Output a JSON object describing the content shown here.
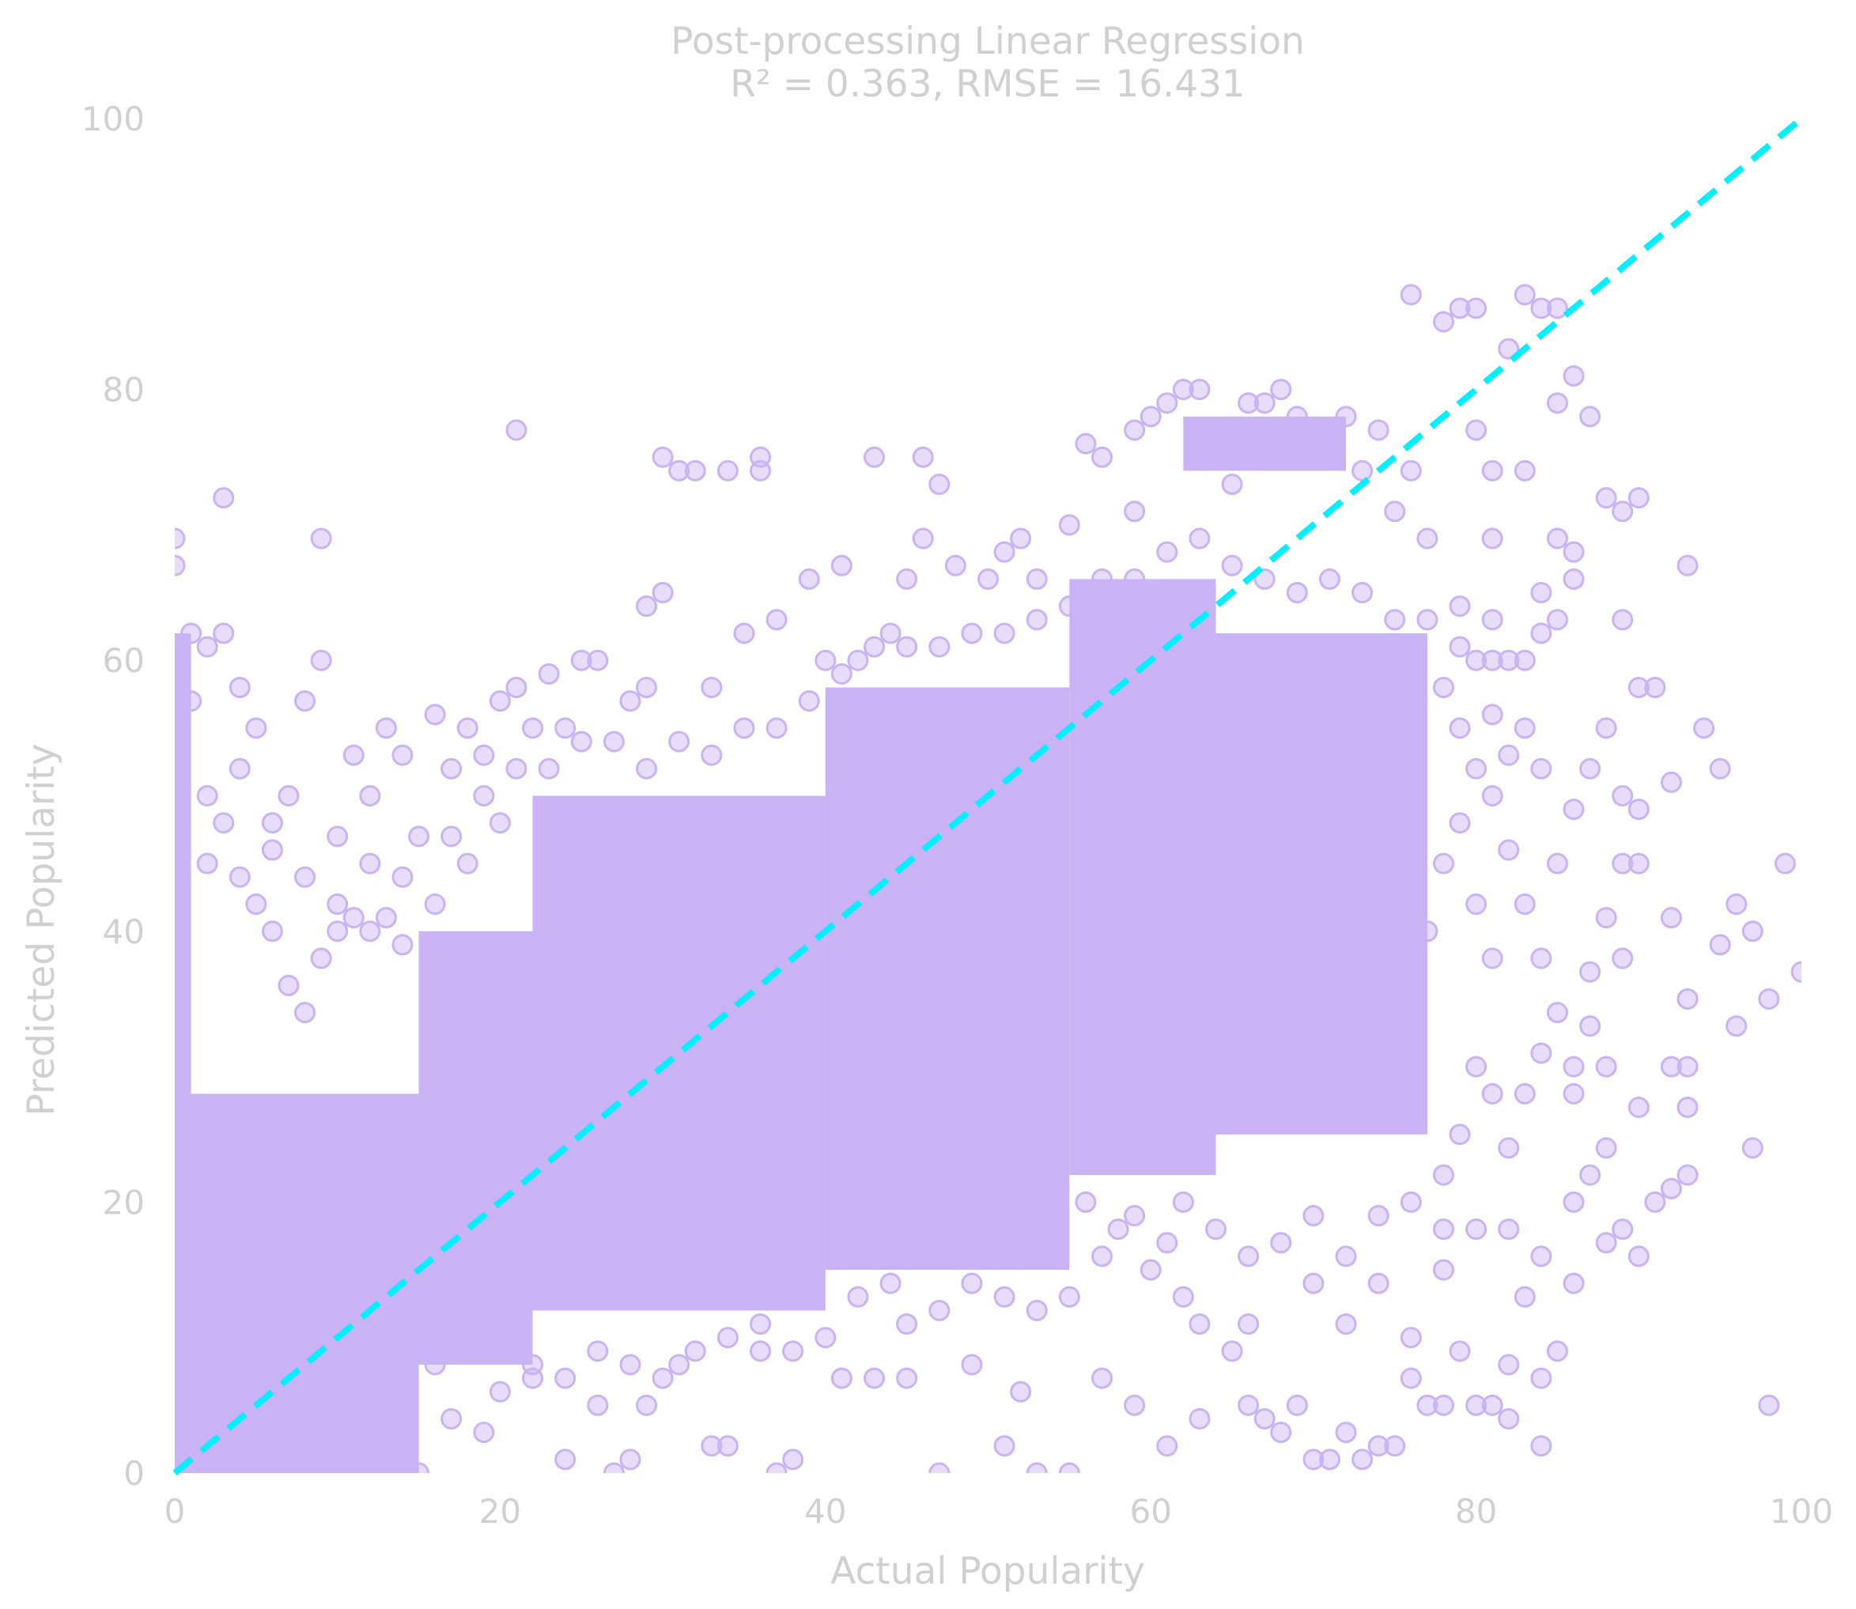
{
  "chart_data": {
    "type": "scatter",
    "title": "Post-processing Linear Regression",
    "subtitle": "R² = 0.363, RMSE = 16.431",
    "xlabel": "Actual Popularity",
    "ylabel": "Predicted Popularity",
    "xlim": [
      0,
      100
    ],
    "ylim": [
      0,
      100
    ],
    "xticks": [
      "0",
      "20",
      "40",
      "60",
      "80",
      "100"
    ],
    "yticks": [
      "0",
      "20",
      "40",
      "60",
      "80",
      "100"
    ],
    "grid": false,
    "point_color": "#c9b3f4",
    "reference_line": {
      "style": "dashed",
      "color": "#00f0ff",
      "from": [
        0,
        0
      ],
      "to": [
        100,
        100
      ]
    },
    "dense_regions": [
      {
        "x": [
          0,
          1
        ],
        "y": [
          0,
          62
        ]
      },
      {
        "x": [
          1,
          15
        ],
        "y": [
          0,
          28
        ]
      },
      {
        "x": [
          15,
          22
        ],
        "y": [
          8,
          40
        ]
      },
      {
        "x": [
          22,
          40
        ],
        "y": [
          12,
          50
        ]
      },
      {
        "x": [
          40,
          55
        ],
        "y": [
          15,
          58
        ]
      },
      {
        "x": [
          55,
          64
        ],
        "y": [
          22,
          66
        ]
      },
      {
        "x": [
          64,
          77
        ],
        "y": [
          25,
          62
        ]
      },
      {
        "x": [
          62,
          72
        ],
        "y": [
          74,
          78
        ]
      }
    ],
    "points": [
      [
        0,
        69
      ],
      [
        0,
        67
      ],
      [
        0,
        60
      ],
      [
        0,
        55
      ],
      [
        1,
        62
      ],
      [
        1,
        57
      ],
      [
        2,
        61
      ],
      [
        3,
        72
      ],
      [
        3,
        62
      ],
      [
        4,
        58
      ],
      [
        5,
        55
      ],
      [
        6,
        48
      ],
      [
        7,
        50
      ],
      [
        8,
        57
      ],
      [
        9,
        69
      ],
      [
        9,
        60
      ],
      [
        10,
        42
      ],
      [
        11,
        53
      ],
      [
        12,
        50
      ],
      [
        13,
        55
      ],
      [
        14,
        53
      ],
      [
        15,
        47
      ],
      [
        16,
        56
      ],
      [
        17,
        52
      ],
      [
        18,
        55
      ],
      [
        19,
        53
      ],
      [
        20,
        57
      ],
      [
        21,
        77
      ],
      [
        21,
        58
      ],
      [
        22,
        55
      ],
      [
        23,
        59
      ],
      [
        24,
        55
      ],
      [
        25,
        60
      ],
      [
        26,
        60
      ],
      [
        28,
        57
      ],
      [
        29,
        64
      ],
      [
        29,
        58
      ],
      [
        30,
        75
      ],
      [
        30,
        65
      ],
      [
        31,
        74
      ],
      [
        32,
        74
      ],
      [
        33,
        58
      ],
      [
        34,
        74
      ],
      [
        35,
        62
      ],
      [
        36,
        74
      ],
      [
        36,
        75
      ],
      [
        37,
        63
      ],
      [
        39,
        66
      ],
      [
        40,
        60
      ],
      [
        41,
        67
      ],
      [
        42,
        60
      ],
      [
        43,
        75
      ],
      [
        44,
        62
      ],
      [
        45,
        66
      ],
      [
        46,
        75
      ],
      [
        46,
        69
      ],
      [
        47,
        73
      ],
      [
        48,
        67
      ],
      [
        50,
        66
      ],
      [
        51,
        68
      ],
      [
        52,
        69
      ],
      [
        53,
        66
      ],
      [
        55,
        70
      ],
      [
        56,
        76
      ],
      [
        57,
        75
      ],
      [
        59,
        77
      ],
      [
        59,
        71
      ],
      [
        60,
        78
      ],
      [
        61,
        79
      ],
      [
        62,
        80
      ],
      [
        63,
        80
      ],
      [
        64,
        75
      ],
      [
        65,
        73
      ],
      [
        66,
        79
      ],
      [
        67,
        79
      ],
      [
        68,
        80
      ],
      [
        69,
        78
      ],
      [
        70,
        75
      ],
      [
        71,
        77
      ],
      [
        72,
        78
      ],
      [
        73,
        74
      ],
      [
        74,
        77
      ],
      [
        75,
        71
      ],
      [
        76,
        87
      ],
      [
        76,
        74
      ],
      [
        77,
        69
      ],
      [
        78,
        85
      ],
      [
        79,
        86
      ],
      [
        79,
        64
      ],
      [
        80,
        86
      ],
      [
        80,
        77
      ],
      [
        81,
        74
      ],
      [
        81,
        69
      ],
      [
        82,
        83
      ],
      [
        83,
        87
      ],
      [
        83,
        74
      ],
      [
        84,
        86
      ],
      [
        85,
        86
      ],
      [
        85,
        79
      ],
      [
        86,
        81
      ],
      [
        87,
        78
      ],
      [
        88,
        72
      ],
      [
        89,
        71
      ],
      [
        89,
        63
      ],
      [
        90,
        72
      ],
      [
        90,
        58
      ],
      [
        91,
        58
      ],
      [
        92,
        51
      ],
      [
        93,
        67
      ],
      [
        94,
        55
      ],
      [
        95,
        52
      ],
      [
        96,
        42
      ],
      [
        97,
        40
      ],
      [
        99,
        45
      ],
      [
        100,
        37
      ],
      [
        98,
        35
      ],
      [
        96,
        33
      ],
      [
        97,
        24
      ],
      [
        98,
        5
      ],
      [
        95,
        39
      ],
      [
        93,
        35
      ],
      [
        93,
        30
      ],
      [
        92,
        30
      ],
      [
        92,
        41
      ],
      [
        91,
        20
      ],
      [
        92,
        21
      ],
      [
        93,
        22
      ],
      [
        93,
        27
      ],
      [
        90,
        27
      ],
      [
        90,
        16
      ],
      [
        89,
        18
      ],
      [
        88,
        17
      ],
      [
        88,
        30
      ],
      [
        87,
        22
      ],
      [
        86,
        14
      ],
      [
        85,
        9
      ],
      [
        84,
        2
      ],
      [
        84,
        7
      ],
      [
        83,
        13
      ],
      [
        82,
        8
      ],
      [
        82,
        4
      ],
      [
        81,
        5
      ],
      [
        80,
        5
      ],
      [
        79,
        9
      ],
      [
        78,
        5
      ],
      [
        77,
        5
      ],
      [
        76,
        7
      ],
      [
        75,
        2
      ],
      [
        74,
        2
      ],
      [
        73,
        1
      ],
      [
        72,
        3
      ],
      [
        71,
        1
      ],
      [
        70,
        1
      ],
      [
        69,
        5
      ],
      [
        68,
        3
      ],
      [
        67,
        4
      ],
      [
        66,
        5
      ],
      [
        65,
        9
      ],
      [
        63,
        4
      ],
      [
        61,
        2
      ],
      [
        59,
        5
      ],
      [
        57,
        7
      ],
      [
        55,
        0
      ],
      [
        53,
        0
      ],
      [
        52,
        6
      ],
      [
        51,
        2
      ],
      [
        49,
        8
      ],
      [
        47,
        0
      ],
      [
        45,
        7
      ],
      [
        43,
        7
      ],
      [
        41,
        7
      ],
      [
        38,
        1
      ],
      [
        37,
        0
      ],
      [
        36,
        9
      ],
      [
        34,
        2
      ],
      [
        33,
        2
      ],
      [
        31,
        8
      ],
      [
        29,
        5
      ],
      [
        28,
        1
      ],
      [
        27,
        0
      ],
      [
        26,
        5
      ],
      [
        24,
        1
      ],
      [
        22,
        7
      ],
      [
        20,
        6
      ],
      [
        19,
        3
      ],
      [
        17,
        4
      ],
      [
        15,
        0
      ],
      [
        14,
        3
      ],
      [
        12,
        3
      ],
      [
        10,
        2
      ],
      [
        8,
        1
      ],
      [
        6,
        1
      ],
      [
        4,
        1
      ],
      [
        2,
        1
      ],
      [
        1,
        3
      ],
      [
        63,
        11
      ],
      [
        62,
        13
      ],
      [
        66,
        11
      ],
      [
        70,
        14
      ],
      [
        72,
        11
      ],
      [
        74,
        14
      ],
      [
        76,
        10
      ],
      [
        78,
        15
      ],
      [
        80,
        18
      ],
      [
        82,
        18
      ],
      [
        84,
        16
      ],
      [
        86,
        20
      ],
      [
        88,
        24
      ],
      [
        86,
        30
      ],
      [
        85,
        34
      ],
      [
        84,
        38
      ],
      [
        83,
        42
      ],
      [
        82,
        46
      ],
      [
        81,
        50
      ],
      [
        80,
        52
      ],
      [
        79,
        55
      ],
      [
        78,
        58
      ],
      [
        85,
        45
      ],
      [
        86,
        49
      ],
      [
        87,
        52
      ],
      [
        88,
        55
      ],
      [
        89,
        45
      ],
      [
        89,
        50
      ],
      [
        88,
        41
      ],
      [
        87,
        37
      ],
      [
        87,
        33
      ],
      [
        86,
        28
      ],
      [
        89,
        38
      ],
      [
        90,
        45
      ],
      [
        90,
        49
      ],
      [
        84,
        52
      ],
      [
        83,
        55
      ],
      [
        83,
        60
      ],
      [
        84,
        62
      ],
      [
        85,
        63
      ],
      [
        86,
        66
      ],
      [
        85,
        69
      ],
      [
        86,
        68
      ],
      [
        84,
        65
      ],
      [
        82,
        60
      ],
      [
        81,
        63
      ],
      [
        80,
        60
      ],
      [
        81,
        56
      ],
      [
        82,
        53
      ],
      [
        79,
        48
      ],
      [
        78,
        45
      ],
      [
        77,
        40
      ],
      [
        76,
        38
      ],
      [
        75,
        36
      ],
      [
        80,
        30
      ],
      [
        79,
        25
      ],
      [
        78,
        22
      ],
      [
        81,
        28
      ],
      [
        82,
        24
      ],
      [
        83,
        28
      ],
      [
        84,
        31
      ],
      [
        81,
        38
      ],
      [
        80,
        42
      ],
      [
        57,
        16
      ],
      [
        55,
        13
      ],
      [
        53,
        12
      ],
      [
        51,
        13
      ],
      [
        49,
        14
      ],
      [
        47,
        12
      ],
      [
        45,
        11
      ],
      [
        60,
        15
      ],
      [
        59,
        19
      ],
      [
        58,
        18
      ],
      [
        61,
        17
      ],
      [
        56,
        20
      ],
      [
        54,
        16
      ],
      [
        50,
        18
      ],
      [
        48,
        20
      ],
      [
        46,
        17
      ],
      [
        44,
        14
      ],
      [
        42,
        13
      ],
      [
        62,
        20
      ],
      [
        64,
        18
      ],
      [
        66,
        16
      ],
      [
        68,
        17
      ],
      [
        70,
        19
      ],
      [
        72,
        16
      ],
      [
        74,
        19
      ],
      [
        76,
        20
      ],
      [
        78,
        18
      ],
      [
        16,
        8
      ],
      [
        18,
        9
      ],
      [
        20,
        10
      ],
      [
        22,
        8
      ],
      [
        24,
        7
      ],
      [
        26,
        9
      ],
      [
        28,
        8
      ],
      [
        30,
        7
      ],
      [
        32,
        9
      ],
      [
        34,
        10
      ],
      [
        36,
        11
      ],
      [
        38,
        9
      ],
      [
        40,
        10
      ],
      [
        9,
        38
      ],
      [
        10,
        40
      ],
      [
        11,
        41
      ],
      [
        12,
        40
      ],
      [
        13,
        41
      ],
      [
        14,
        39
      ],
      [
        6,
        40
      ],
      [
        7,
        36
      ],
      [
        8,
        34
      ],
      [
        5,
        42
      ],
      [
        4,
        44
      ],
      [
        3,
        48
      ],
      [
        2,
        50
      ],
      [
        2,
        45
      ],
      [
        4,
        52
      ],
      [
        6,
        46
      ],
      [
        8,
        44
      ],
      [
        10,
        47
      ],
      [
        12,
        45
      ],
      [
        14,
        44
      ],
      [
        16,
        42
      ],
      [
        18,
        45
      ],
      [
        20,
        48
      ],
      [
        17,
        47
      ],
      [
        19,
        50
      ],
      [
        21,
        52
      ],
      [
        23,
        52
      ],
      [
        25,
        54
      ],
      [
        27,
        54
      ],
      [
        29,
        52
      ],
      [
        31,
        54
      ],
      [
        33,
        53
      ],
      [
        35,
        55
      ],
      [
        37,
        55
      ],
      [
        39,
        57
      ],
      [
        41,
        59
      ],
      [
        43,
        61
      ],
      [
        45,
        61
      ],
      [
        47,
        61
      ],
      [
        49,
        62
      ],
      [
        51,
        62
      ],
      [
        53,
        63
      ],
      [
        55,
        64
      ],
      [
        57,
        66
      ],
      [
        59,
        66
      ],
      [
        61,
        68
      ],
      [
        63,
        69
      ],
      [
        65,
        67
      ],
      [
        67,
        66
      ],
      [
        69,
        65
      ],
      [
        71,
        66
      ],
      [
        73,
        65
      ],
      [
        75,
        63
      ],
      [
        77,
        63
      ],
      [
        79,
        61
      ],
      [
        81,
        60
      ]
    ]
  }
}
